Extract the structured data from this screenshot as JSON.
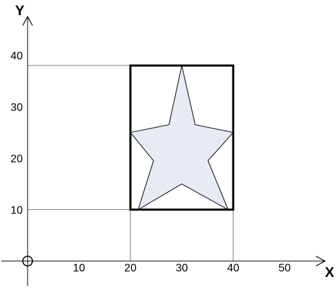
{
  "axes": {
    "x_title": "X",
    "y_title": "Y",
    "x_ticks": [
      {
        "value": 10,
        "label": "10"
      },
      {
        "value": 20,
        "label": "20"
      },
      {
        "value": 30,
        "label": "30"
      },
      {
        "value": 40,
        "label": "40"
      },
      {
        "value": 50,
        "label": "50"
      }
    ],
    "y_ticks": [
      {
        "value": 10,
        "label": "10"
      },
      {
        "value": 20,
        "label": "20"
      },
      {
        "value": 30,
        "label": "30"
      },
      {
        "value": 40,
        "label": "40"
      }
    ]
  },
  "rectangle": {
    "x_min": 20,
    "x_max": 40,
    "y_min": 10,
    "y_max": 38
  },
  "star": {
    "points": [
      [
        30,
        38
      ],
      [
        32.6,
        26.5
      ],
      [
        40,
        25
      ],
      [
        35.1,
        19.5
      ],
      [
        39,
        10
      ],
      [
        30,
        15
      ],
      [
        21.5,
        10
      ],
      [
        24.5,
        19.5
      ],
      [
        20,
        25
      ],
      [
        27.5,
        26.5
      ]
    ]
  },
  "colors": {
    "star_fill": "#e6ebf5",
    "outline": "#000000",
    "guide_line": "#555555"
  }
}
